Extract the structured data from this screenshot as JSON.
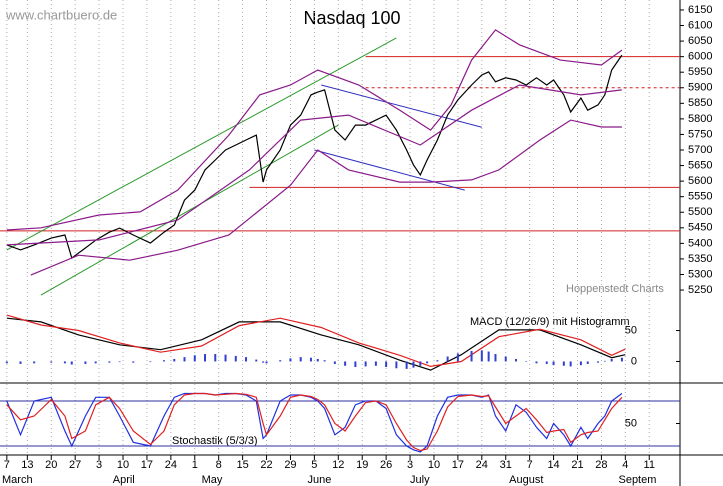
{
  "chart_data": [
    {
      "type": "line",
      "title": "Nasdaq 100",
      "watermark": "www.chartbuero.de",
      "source": "Hoppenstedt Charts",
      "xlim": [
        -2,
        197
      ],
      "ylim": [
        5218,
        6182
      ],
      "yticks": [
        5250,
        5300,
        5350,
        5400,
        5450,
        5500,
        5550,
        5600,
        5650,
        5700,
        5750,
        5800,
        5850,
        5900,
        5950,
        6000,
        6050,
        6100,
        6150
      ],
      "series": [
        {
          "color": "#000000",
          "x": [
            0,
            4,
            8,
            13,
            17,
            19,
            23,
            26,
            30,
            33,
            37,
            42,
            46,
            49,
            52,
            55,
            58,
            61,
            64,
            67,
            70,
            73,
            75,
            76,
            80,
            83,
            86,
            89,
            91,
            93,
            96,
            99,
            102,
            105,
            108,
            111,
            114,
            117,
            119,
            121,
            123,
            126,
            129,
            132,
            136,
            139,
            141,
            143,
            146,
            149,
            152,
            155,
            158,
            160,
            163,
            165,
            168,
            170,
            173,
            175,
            177,
            180
          ],
          "values": [
            5395,
            5379,
            5395,
            5417,
            5427,
            5353,
            5385,
            5410,
            5436,
            5449,
            5427,
            5401,
            5436,
            5459,
            5539,
            5571,
            5636,
            5668,
            5700,
            5716,
            5732,
            5748,
            5597,
            5636,
            5700,
            5780,
            5812,
            5877,
            5886,
            5893,
            5764,
            5732,
            5780,
            5780,
            5796,
            5812,
            5764,
            5700,
            5652,
            5620,
            5668,
            5732,
            5812,
            5861,
            5909,
            5941,
            5951,
            5919,
            5932,
            5925,
            5909,
            5932,
            5909,
            5925,
            5877,
            5822,
            5867,
            5828,
            5845,
            5877,
            5957,
            6005
          ]
        },
        {
          "color": "#8b1a8b",
          "x": [
            0,
            10,
            27,
            39,
            50,
            65,
            74,
            83,
            91,
            103,
            115,
            124,
            130,
            136,
            143,
            150,
            162,
            174,
            180
          ],
          "values": [
            5443,
            5450,
            5491,
            5501,
            5571,
            5748,
            5877,
            5909,
            5957,
            5909,
            5828,
            5764,
            5845,
            5989,
            6086,
            6038,
            5989,
            5973,
            6021
          ]
        },
        {
          "color": "#8b1a8b",
          "x": [
            0,
            27,
            50,
            71,
            86,
            100,
            121,
            136,
            150,
            168,
            180
          ],
          "values": [
            5395,
            5411,
            5475,
            5636,
            5796,
            5812,
            5716,
            5828,
            5909,
            5877,
            5893
          ]
        },
        {
          "color": "#8b1a8b",
          "x": [
            7,
            21,
            36,
            50,
            65,
            74,
            83,
            91,
            100,
            115,
            124,
            136,
            144,
            156,
            165,
            174,
            180
          ],
          "values": [
            5298,
            5362,
            5346,
            5378,
            5427,
            5507,
            5587,
            5700,
            5636,
            5597,
            5597,
            5604,
            5636,
            5732,
            5796,
            5774,
            5774
          ]
        }
      ],
      "trendlines": [
        {
          "color": "#2a9a2a",
          "x": [
            0,
            114
          ],
          "values": [
            5379,
            6060
          ]
        },
        {
          "color": "#2a9a2a",
          "x": [
            10,
            97
          ],
          "values": [
            5234,
            5780
          ]
        },
        {
          "color": "#3030c0",
          "x": [
            92,
            139
          ],
          "values": [
            5909,
            5773
          ]
        },
        {
          "color": "#3030c0",
          "x": [
            90,
            134
          ],
          "values": [
            5700,
            5571
          ]
        }
      ],
      "levels": [
        {
          "value": 6000,
          "from": 105,
          "dashed": false
        },
        {
          "value": 5900,
          "from": 105,
          "dashed": true
        },
        {
          "value": 5580,
          "from": 71,
          "dashed": false
        },
        {
          "value": 5440,
          "dashed": false
        }
      ],
      "level_color": "#d02020"
    },
    {
      "type": "line",
      "label": "MACD (12/26/9) mit Histogramm",
      "xlim": [
        -2,
        197
      ],
      "ylim": [
        -30,
        80
      ],
      "yticks": [
        0,
        50
      ],
      "series": [
        {
          "color": "#000000",
          "x": [
            0,
            10,
            21,
            33,
            45,
            57,
            68,
            80,
            92,
            103,
            115,
            124,
            133,
            144,
            156,
            168,
            177,
            181
          ],
          "values": [
            70,
            64,
            43,
            27,
            19,
            35,
            64,
            64,
            43,
            27,
            2,
            -14,
            11,
            51,
            51,
            27,
            6,
            11
          ]
        },
        {
          "color": "#e02020",
          "x": [
            0,
            10,
            21,
            33,
            45,
            57,
            68,
            80,
            92,
            103,
            115,
            124,
            133,
            144,
            156,
            168,
            177,
            181
          ],
          "values": [
            75,
            59,
            50,
            30,
            15,
            25,
            58,
            70,
            55,
            30,
            10,
            -8,
            0,
            40,
            52,
            35,
            10,
            20
          ]
        },
        {
          "type": "bar",
          "color": "#3040d0",
          "x": [
            0,
            4,
            8,
            13,
            17,
            19,
            23,
            26,
            30,
            33,
            37,
            42,
            46,
            49,
            52,
            55,
            58,
            61,
            64,
            67,
            70,
            73,
            75,
            76,
            80,
            83,
            86,
            89,
            91,
            93,
            96,
            99,
            102,
            105,
            108,
            111,
            114,
            117,
            119,
            121,
            123,
            126,
            129,
            132,
            136,
            139,
            141,
            143,
            146,
            149,
            152,
            155,
            158,
            160,
            163,
            165,
            168,
            170,
            173,
            175,
            177,
            180
          ],
          "values": [
            -3,
            -4,
            -3,
            -2,
            -3,
            -5,
            -4,
            -3,
            -2,
            -1,
            -2,
            -1,
            2,
            4,
            7,
            10,
            12,
            12,
            11,
            9,
            7,
            3,
            -2,
            -3,
            2,
            5,
            7,
            6,
            4,
            2,
            -4,
            -7,
            -9,
            -8,
            -7,
            -9,
            -11,
            -12,
            -10,
            -7,
            -3,
            2,
            8,
            13,
            17,
            18,
            16,
            12,
            8,
            4,
            0,
            -3,
            -4,
            -6,
            -7,
            -8,
            -6,
            -4,
            -2,
            1,
            4,
            6
          ]
        }
      ]
    },
    {
      "type": "line",
      "label": "Stochastik (5/3/3)",
      "xlim": [
        -2,
        197
      ],
      "ylim": [
        0,
        100
      ],
      "yticks": [
        50
      ],
      "grid": true,
      "levels": [
        {
          "value": 80
        },
        {
          "value": 20
        }
      ],
      "level_color": "#3030a0",
      "series": [
        {
          "color": "#2030e0",
          "x": [
            0,
            4,
            8,
            13,
            17,
            19,
            23,
            26,
            30,
            33,
            37,
            42,
            46,
            49,
            52,
            55,
            58,
            61,
            64,
            67,
            70,
            73,
            75,
            76,
            80,
            83,
            86,
            89,
            91,
            93,
            96,
            99,
            102,
            105,
            108,
            111,
            114,
            117,
            119,
            121,
            123,
            126,
            129,
            132,
            136,
            139,
            141,
            143,
            146,
            149,
            152,
            155,
            158,
            160,
            163,
            165,
            168,
            170,
            173,
            175,
            177,
            180
          ],
          "values": [
            80,
            35,
            80,
            85,
            40,
            20,
            60,
            85,
            85,
            60,
            25,
            20,
            60,
            85,
            90,
            90,
            90,
            88,
            90,
            90,
            88,
            80,
            30,
            35,
            80,
            88,
            88,
            85,
            80,
            70,
            35,
            45,
            75,
            80,
            80,
            70,
            35,
            20,
            15,
            12,
            20,
            60,
            85,
            88,
            88,
            85,
            88,
            60,
            40,
            75,
            65,
            45,
            30,
            50,
            35,
            20,
            45,
            30,
            50,
            60,
            80,
            90
          ]
        },
        {
          "color": "#e02020",
          "x": [
            0,
            4,
            8,
            13,
            17,
            19,
            23,
            26,
            30,
            33,
            37,
            42,
            46,
            49,
            52,
            55,
            58,
            61,
            64,
            67,
            70,
            73,
            75,
            76,
            80,
            83,
            86,
            89,
            91,
            93,
            96,
            99,
            102,
            105,
            108,
            111,
            114,
            117,
            119,
            121,
            123,
            126,
            129,
            132,
            136,
            139,
            141,
            143,
            146,
            149,
            152,
            155,
            158,
            160,
            163,
            165,
            168,
            170,
            173,
            175,
            177,
            180
          ],
          "values": [
            75,
            55,
            60,
            82,
            60,
            30,
            40,
            75,
            85,
            70,
            40,
            22,
            40,
            75,
            88,
            90,
            90,
            88,
            89,
            90,
            89,
            85,
            50,
            35,
            60,
            85,
            88,
            86,
            82,
            75,
            50,
            40,
            60,
            78,
            80,
            75,
            50,
            28,
            18,
            14,
            16,
            40,
            72,
            86,
            88,
            86,
            87,
            72,
            50,
            60,
            70,
            55,
            38,
            40,
            42,
            25,
            35,
            38,
            40,
            55,
            70,
            85
          ]
        }
      ],
      "xticks": [
        {
          "value": 0,
          "label": "7"
        },
        {
          "value": 6,
          "label": "13"
        },
        {
          "value": 13,
          "label": "20"
        },
        {
          "value": 20,
          "label": "27"
        },
        {
          "value": 27,
          "label": "3"
        },
        {
          "value": 34,
          "label": "10"
        },
        {
          "value": 41,
          "label": "17"
        },
        {
          "value": 48,
          "label": "24"
        },
        {
          "value": 55,
          "label": "1"
        },
        {
          "value": 62,
          "label": "8"
        },
        {
          "value": 69,
          "label": "15"
        },
        {
          "value": 76,
          "label": "22"
        },
        {
          "value": 83,
          "label": "29"
        },
        {
          "value": 90,
          "label": "5"
        },
        {
          "value": 97,
          "label": "12"
        },
        {
          "value": 104,
          "label": "19"
        },
        {
          "value": 111,
          "label": "26"
        },
        {
          "value": 118,
          "label": "3"
        },
        {
          "value": 125,
          "label": "10"
        },
        {
          "value": 132,
          "label": "17"
        },
        {
          "value": 139,
          "label": "24"
        },
        {
          "value": 146,
          "label": "31"
        },
        {
          "value": 153,
          "label": "7"
        },
        {
          "value": 160,
          "label": "14"
        },
        {
          "value": 167,
          "label": "21"
        },
        {
          "value": 174,
          "label": "28"
        },
        {
          "value": 181,
          "label": "4"
        },
        {
          "value": 188,
          "label": "11"
        }
      ],
      "months": [
        {
          "value": -2,
          "label": "March"
        },
        {
          "value": 31,
          "label": "April"
        },
        {
          "value": 57,
          "label": "May"
        },
        {
          "value": 88,
          "label": "June"
        },
        {
          "value": 118,
          "label": "July"
        },
        {
          "value": 147,
          "label": "August"
        },
        {
          "value": 179,
          "label": "Septem"
        }
      ]
    }
  ]
}
